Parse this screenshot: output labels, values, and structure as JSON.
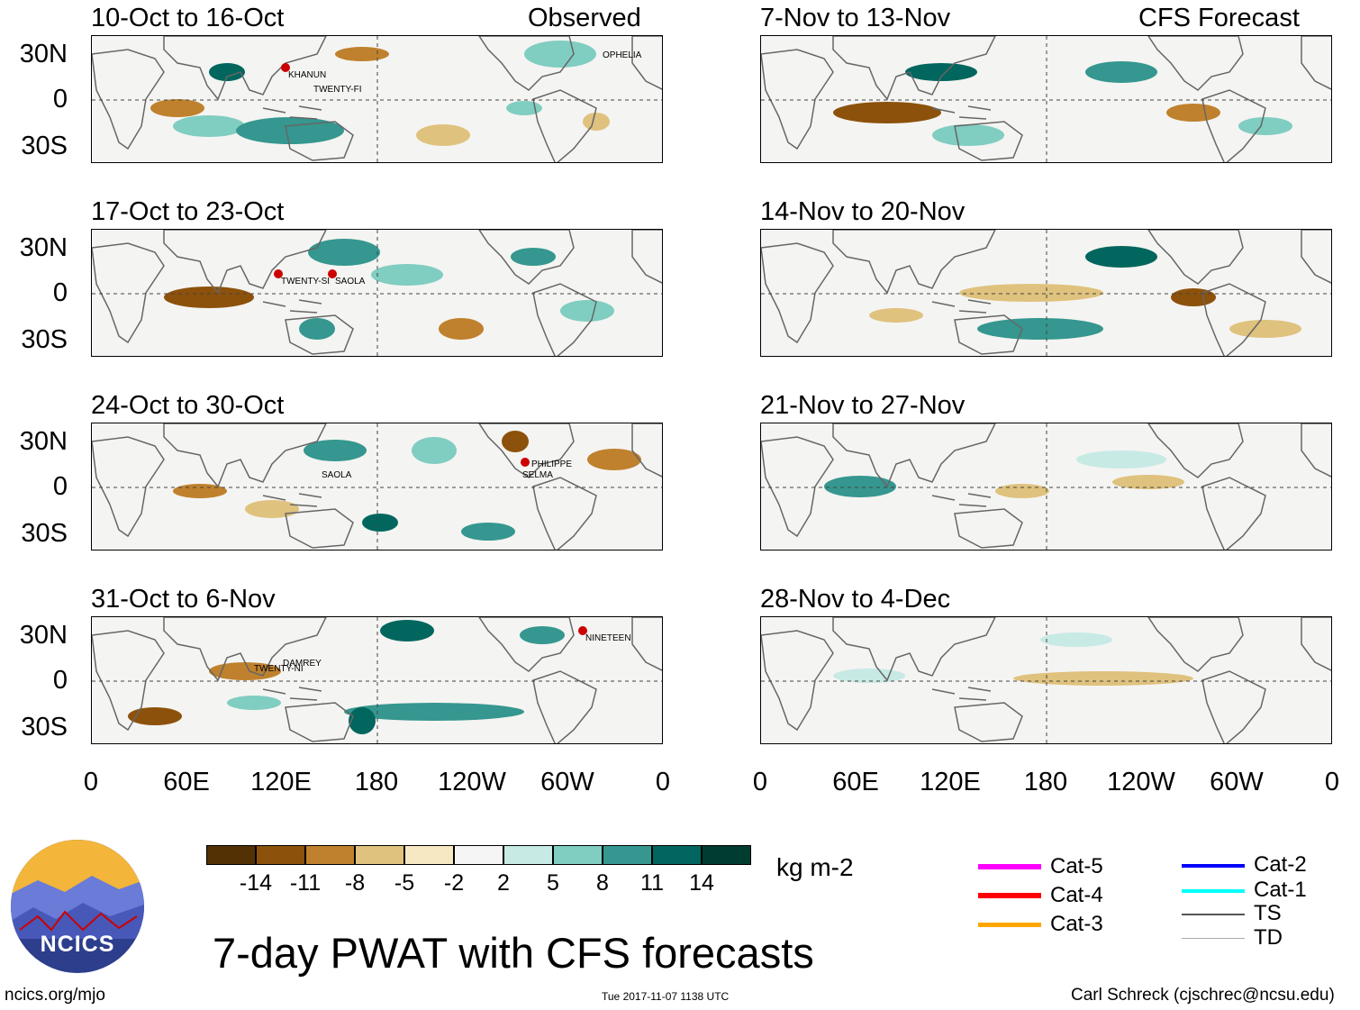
{
  "panels_left": [
    {
      "range": "10-Oct to 16-Oct",
      "header": "Observed",
      "storms": [
        "KHANUN",
        "TWENTY-FI",
        "OPHELIA"
      ]
    },
    {
      "range": "17-Oct to 23-Oct",
      "header": "",
      "storms": [
        "TWENTY-SI",
        "SAOLA"
      ]
    },
    {
      "range": "24-Oct to 30-Oct",
      "header": "",
      "storms": [
        "SAOLA",
        "PHILIPPE",
        "SELMA"
      ]
    },
    {
      "range": "31-Oct to 6-Nov",
      "header": "",
      "storms": [
        "TWENTY-NI",
        "DAMREY",
        "NINETEEN"
      ]
    }
  ],
  "panels_right": [
    {
      "range": "7-Nov to 13-Nov",
      "header": "CFS Forecast"
    },
    {
      "range": "14-Nov to 20-Nov",
      "header": ""
    },
    {
      "range": "21-Nov to 27-Nov",
      "header": ""
    },
    {
      "range": "28-Nov to 4-Dec",
      "header": ""
    }
  ],
  "lat_labels": [
    "30N",
    "0",
    "30S"
  ],
  "lon_labels": [
    "0",
    "60E",
    "120E",
    "180",
    "120W",
    "60W",
    "0"
  ],
  "colorbar": {
    "unit": "kg m-2",
    "ticks": [
      "-14",
      "-11",
      "-8",
      "-5",
      "-2",
      "2",
      "5",
      "8",
      "11",
      "14"
    ],
    "colors": [
      "#543005",
      "#8c510a",
      "#bf812d",
      "#dfc27d",
      "#f6e8c3",
      "#f5f5f5",
      "#c7eae5",
      "#80cdc1",
      "#35978f",
      "#01665e",
      "#003c30"
    ]
  },
  "legend": {
    "left": [
      {
        "label": "Cat-5",
        "color": "#ff00ff"
      },
      {
        "label": "Cat-4",
        "color": "#ff0000"
      },
      {
        "label": "Cat-3",
        "color": "#ffa500"
      }
    ],
    "right": [
      {
        "label": "Cat-2",
        "color": "#0000ff"
      },
      {
        "label": "Cat-1",
        "color": "#00ffff"
      },
      {
        "label": "TS",
        "color": "#555555"
      },
      {
        "label": "TD",
        "color": "#aaaaaa"
      }
    ]
  },
  "logo_text": "NCICS",
  "main_title": "7-day PWAT with CFS forecasts",
  "footer": {
    "url": "ncics.org/mjo",
    "timestamp": "Tue 2017-11-07 1138 UTC",
    "credit": "Carl Schreck (cjschrec@ncsu.edu)"
  }
}
